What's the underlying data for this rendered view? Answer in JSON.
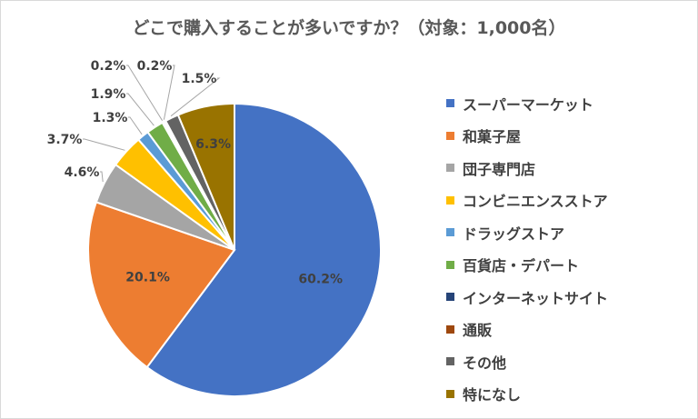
{
  "chart_data": {
    "type": "pie",
    "title": "どこで購入することが多いですか？（対象：1,000名）",
    "legend_position": "right",
    "slices": [
      {
        "label": "スーパーマーケット",
        "value": 60.2,
        "value_label": "60.2%",
        "color": "#4472C4"
      },
      {
        "label": "和菓子屋",
        "value": 20.1,
        "value_label": "20.1%",
        "color": "#ED7D31"
      },
      {
        "label": "団子専門店",
        "value": 4.6,
        "value_label": "4.6%",
        "color": "#A5A5A5"
      },
      {
        "label": "コンビニエンスストア",
        "value": 3.7,
        "value_label": "3.7%",
        "color": "#FFC000"
      },
      {
        "label": "ドラッグストア",
        "value": 1.3,
        "value_label": "1.3%",
        "color": "#5B9BD5"
      },
      {
        "label": "百貨店・デパート",
        "value": 1.9,
        "value_label": "1.9%",
        "color": "#70AD47"
      },
      {
        "label": "インターネットサイト",
        "value": 0.2,
        "value_label": "0.2%",
        "color": "#264478"
      },
      {
        "label": "通販",
        "value": 0.2,
        "value_label": "0.2%",
        "color": "#9E480E"
      },
      {
        "label": "その他",
        "value": 1.5,
        "value_label": "1.5%",
        "color": "#636363"
      },
      {
        "label": "特になし",
        "value": 6.3,
        "value_label": "6.3%",
        "color": "#997300"
      }
    ]
  }
}
